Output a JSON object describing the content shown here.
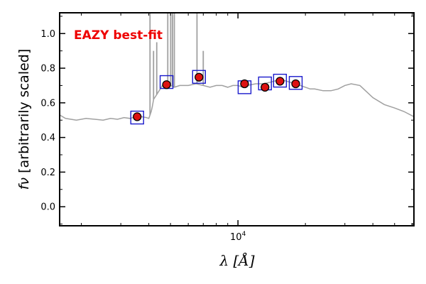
{
  "chart_data": {
    "type": "scatter",
    "annotation": "EAZY best-fit",
    "colors": {
      "model": "#a0a0a0",
      "observed_fill": "#dd1111",
      "observed_edge": "#000000",
      "model_box": "#1a1acc",
      "annotation": "#ee0000"
    },
    "xlabel_symbol": "λ",
    "xlabel_unit": "[Å]",
    "ylabel_symbol": "fν",
    "ylabel_text": "[arbitrarily scaled]",
    "xscale": "log",
    "xlim": [
      1600,
      61000
    ],
    "ylim": [
      -0.11,
      1.12
    ],
    "x_tick_label": "10^4",
    "y_ticks": [
      "0.0",
      "0.2",
      "0.4",
      "0.6",
      "0.8",
      "1.0"
    ],
    "observed": {
      "x": [
        3550,
        4800,
        6700,
        10700,
        13200,
        15400,
        18100
      ],
      "y": [
        0.52,
        0.705,
        0.748,
        0.71,
        0.69,
        0.725,
        0.71
      ]
    },
    "model_photometry": {
      "x": [
        3550,
        4800,
        6700,
        10700,
        13200,
        15400,
        18100
      ],
      "y": [
        0.515,
        0.72,
        0.75,
        0.69,
        0.712,
        0.728,
        0.715
      ]
    },
    "model_sed": {
      "x": [
        1600,
        1700,
        1900,
        2100,
        2300,
        2500,
        2700,
        2900,
        3100,
        3300,
        3500,
        3700,
        3900,
        4000,
        4100,
        4150,
        4200,
        4300,
        4400,
        4500,
        4600,
        4700,
        4800,
        5000,
        5200,
        5500,
        6000,
        6500,
        7000,
        7500,
        8000,
        8500,
        9000,
        9500,
        10000,
        10500,
        11000,
        12000,
        13000,
        14000,
        15000,
        16000,
        17000,
        18000,
        19000,
        20000,
        21000,
        22000,
        24000,
        26000,
        28000,
        30000,
        32000,
        35000,
        40000,
        45000,
        50000,
        55000,
        61000
      ],
      "y": [
        0.53,
        0.51,
        0.5,
        0.51,
        0.505,
        0.5,
        0.51,
        0.505,
        0.515,
        0.51,
        0.52,
        0.52,
        0.515,
        0.51,
        0.55,
        0.58,
        0.62,
        0.64,
        0.66,
        0.68,
        0.7,
        0.69,
        0.71,
        0.7,
        0.69,
        0.7,
        0.7,
        0.71,
        0.7,
        0.69,
        0.7,
        0.7,
        0.69,
        0.7,
        0.7,
        0.69,
        0.7,
        0.71,
        0.71,
        0.72,
        0.73,
        0.73,
        0.72,
        0.71,
        0.7,
        0.69,
        0.68,
        0.68,
        0.67,
        0.67,
        0.68,
        0.7,
        0.71,
        0.7,
        0.63,
        0.59,
        0.57,
        0.55,
        0.52
      ]
    },
    "model_lines": [
      {
        "x": 4050,
        "y": 1.12
      },
      {
        "x": 4340,
        "y": 0.95
      },
      {
        "x": 4200,
        "y": 0.9
      },
      {
        "x": 4861,
        "y": 1.12
      },
      {
        "x": 5007,
        "y": 1.12
      },
      {
        "x": 5100,
        "y": 1.12
      },
      {
        "x": 5200,
        "y": 1.12
      },
      {
        "x": 6563,
        "y": 1.12
      },
      {
        "x": 7000,
        "y": 0.9
      }
    ]
  }
}
